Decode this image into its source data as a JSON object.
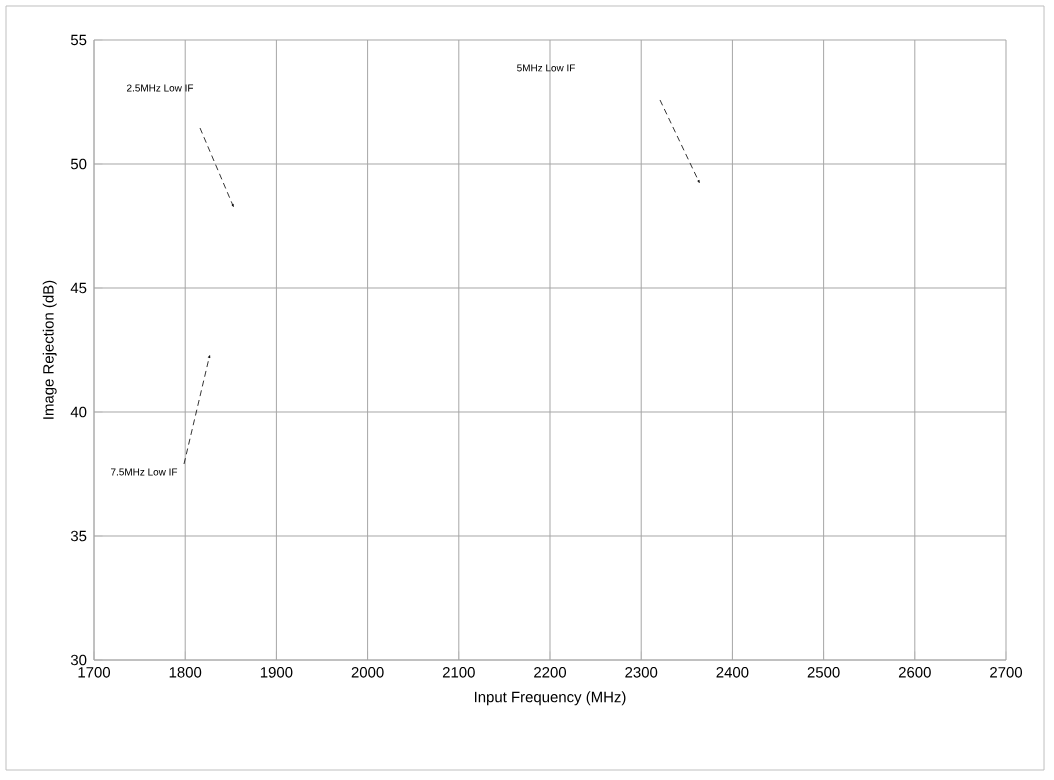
{
  "chart_data": {
    "type": "line",
    "xlabel": "Input Frequency (MHz)",
    "ylabel": "Image Rejection (dB)",
    "xlim": [
      1700,
      2700
    ],
    "xticks": [
      1700,
      1800,
      1900,
      2000,
      2100,
      2200,
      2300,
      2400,
      2500,
      2600,
      2700
    ],
    "ylim": [
      30,
      55
    ],
    "yticks": [
      30,
      35,
      40,
      45,
      50,
      55
    ],
    "grid": true,
    "annotations": [
      "2.5MHz Low IF",
      "5MHz Low IF",
      "7.5MHz Low IF"
    ]
  }
}
